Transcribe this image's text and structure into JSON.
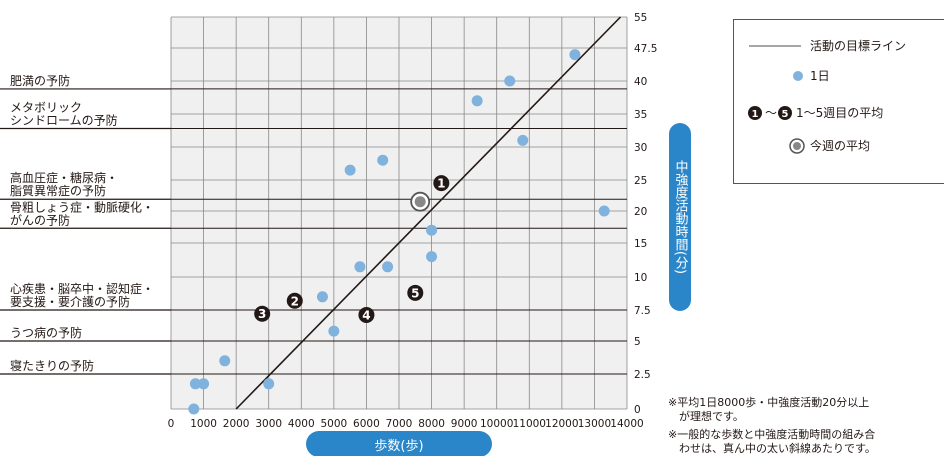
{
  "chart_data": {
    "type": "scatter",
    "title": "",
    "xlabel": "歩数(歩)",
    "ylabel": "中強度活動時間(分)",
    "xlim": [
      0,
      14000
    ],
    "ylim": [
      0,
      55
    ],
    "x_ticks": [
      0,
      1000,
      2000,
      3000,
      4000,
      5000,
      6000,
      7000,
      8000,
      9000,
      10000,
      11000,
      12000,
      13000,
      14000
    ],
    "y_ticks": [
      {
        "v": 0,
        "label": "0"
      },
      {
        "v": 2.5,
        "label": "2.5"
      },
      {
        "v": 5,
        "label": "5"
      },
      {
        "v": 7.5,
        "label": "7.5"
      },
      {
        "v": 10,
        "label": "10"
      },
      {
        "v": 15,
        "label": "15"
      },
      {
        "v": 20,
        "label": "20"
      },
      {
        "v": 25,
        "label": "25"
      },
      {
        "v": 30,
        "label": "30"
      },
      {
        "v": 35,
        "label": "35"
      },
      {
        "v": 40,
        "label": "40"
      },
      {
        "v": 47.5,
        "label": "47.5"
      },
      {
        "v": 55,
        "label": "55"
      }
    ],
    "grid": true,
    "legend_position": "top-right",
    "series": [
      {
        "name": "活動の目標ライン",
        "kind": "line",
        "color": "#231815",
        "points": [
          [
            2000,
            0
          ],
          [
            13800,
            55
          ]
        ]
      },
      {
        "name": "1日",
        "kind": "scatter",
        "color": "#7fb2dd",
        "points": [
          [
            700,
            0
          ],
          [
            750,
            1.8
          ],
          [
            1000,
            1.8
          ],
          [
            1650,
            3.5
          ],
          [
            3000,
            1.8
          ],
          [
            4650,
            8.5
          ],
          [
            5000,
            5.8
          ],
          [
            5800,
            11.5
          ],
          [
            6650,
            11.5
          ],
          [
            5500,
            26.5
          ],
          [
            6500,
            28
          ],
          [
            8000,
            13
          ],
          [
            8000,
            17
          ],
          [
            9400,
            37
          ],
          [
            10400,
            40
          ],
          [
            10800,
            31
          ],
          [
            12400,
            46
          ],
          [
            13300,
            20
          ]
        ]
      },
      {
        "name": "1〜5週目の平均",
        "kind": "numbered",
        "color": "#231815",
        "points": [
          {
            "label": "1",
            "x": 8300,
            "y": 24.5
          },
          {
            "label": "2",
            "x": 3800,
            "y": 8.2
          },
          {
            "label": "3",
            "x": 2800,
            "y": 7.2
          },
          {
            "label": "4",
            "x": 6000,
            "y": 7.1
          },
          {
            "label": "5",
            "x": 7500,
            "y": 8.8
          }
        ]
      },
      {
        "name": "今週の平均",
        "kind": "highlight",
        "color": "#888888",
        "points": [
          [
            7650,
            21.5
          ]
        ]
      }
    ],
    "bands": [
      {
        "label": "肥満の予防",
        "y": 38.8
      },
      {
        "label": "メタボリックシンドロームの予防",
        "y": 32.8
      },
      {
        "label": "高血圧症・糖尿病・脂質異常症の予防",
        "y": 21.9
      },
      {
        "label": "骨粗しょう症・動脈硬化・がんの予防",
        "y": 17.3
      },
      {
        "label": "心疾患・脳卒中・認知症・要支援・要介護の予防",
        "y": 7.5
      },
      {
        "label": "うつ病の予防",
        "y": 5
      },
      {
        "label": "寝たきりの予防",
        "y": 2.5
      }
    ],
    "band_texts": [
      [
        "肥満の予防"
      ],
      [
        "メタボリック",
        "シンドロームの予防"
      ],
      [
        "高血圧症・糖尿病・",
        "脂質異常症の予防"
      ],
      [
        "骨粗しょう症・動脈硬化・",
        "がんの予防"
      ],
      [
        "心疾患・脳卒中・認知症・",
        "要支援・要介護の予防"
      ],
      [
        "うつ病の予防"
      ],
      [
        "寝たきりの予防"
      ]
    ]
  },
  "legend": {
    "line_label": "活動の目標ライン",
    "day_label": "1日",
    "week_first": "1",
    "week_tilde": "〜",
    "week_last": "5",
    "week_label": "1〜5週目の平均",
    "current_label": "今週の平均"
  },
  "notes": [
    "※平均1日8000歩・中強度活動20分以上",
    "　が理想です。",
    "※一般的な歩数と中強度活動時間の組み合",
    "　わせは、真ん中の太い斜線あたりです。"
  ],
  "colors": {
    "grid": "#888888",
    "dot": "#7fb2dd",
    "pill": "#2a86c8",
    "ink": "#231815"
  }
}
